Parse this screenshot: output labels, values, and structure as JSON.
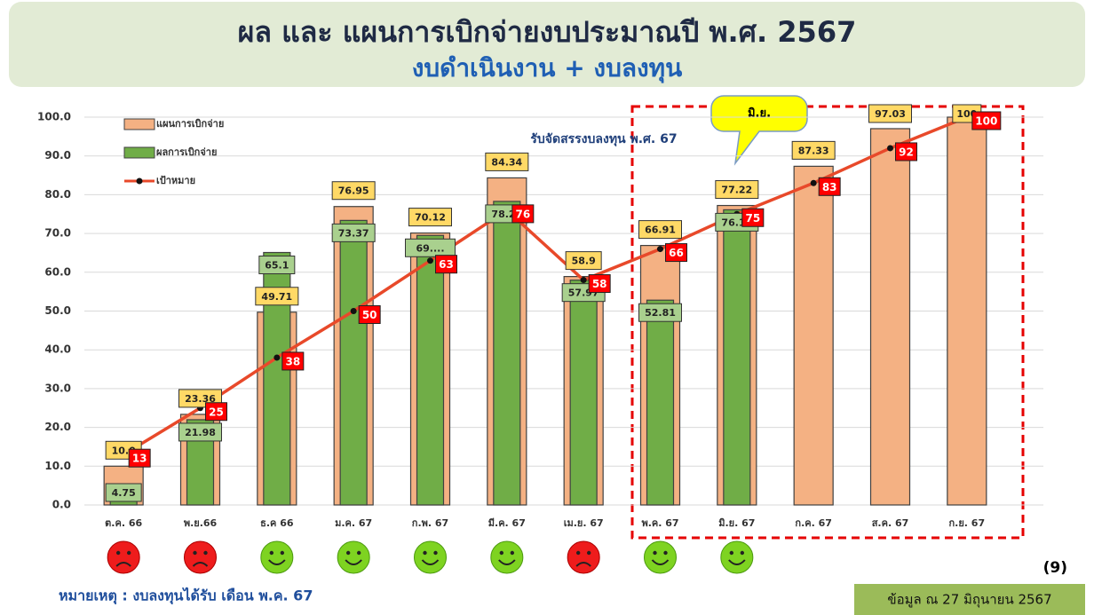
{
  "chart_data": {
    "type": "bar",
    "title": "ผล และ แผนการเบิกจ่ายงบประมาณปี พ.ศ. 2567",
    "subtitle": "งบดำเนินงาน + งบลงทุน",
    "annotation": "รับจัดสรรงบลงทุน  พ.ศ. 67",
    "callout": "มิ.ย.",
    "note": "หมายเหตุ : งบลงทุนได้รับ เดือน พ.ค. 67",
    "page_number": "(9)",
    "data_date": "ข้อมูล ณ  27  มิถุนายน 2567",
    "categories": [
      "ต.ค. 66",
      "พ.ย.66",
      "ธ.ค 66",
      "ม.ค. 67",
      "ก.พ. 67",
      "มี.ค. 67",
      "เม.ย. 67",
      "พ.ค. 67",
      "มิ.ย. 67",
      "ก.ค. 67",
      "ส.ค. 67",
      "ก.ย. 67"
    ],
    "series": [
      {
        "name": "แผนการเบิกจ่าย",
        "type": "bar",
        "color": "#f4b183",
        "values": [
          10.0,
          23.36,
          49.71,
          76.95,
          70.12,
          84.34,
          58.9,
          66.91,
          77.22,
          87.33,
          97.03,
          100
        ],
        "value_labels": [
          "10.0",
          "23.36",
          "49.71",
          "76.95",
          "70.12",
          "84.34",
          "58.9",
          "66.91",
          "77.22",
          "87.33",
          "97.03",
          "100"
        ]
      },
      {
        "name": "ผลการเบิกจ่าย",
        "type": "bar",
        "color": "#70ad47",
        "values": [
          4.75,
          21.98,
          65.1,
          73.37,
          69.5,
          78.28,
          57.97,
          52.81,
          76.11,
          null,
          null,
          null
        ],
        "value_labels": [
          "4.75",
          "21.98",
          "65.1",
          "73.37",
          "69....",
          "78.28",
          "57.97",
          "52.81",
          "76.11",
          null,
          null,
          null
        ]
      },
      {
        "name": "เป้าหมาย",
        "type": "line",
        "color": "#e8492a",
        "values": [
          13,
          25,
          38,
          50,
          63,
          76,
          58,
          66,
          75,
          83,
          92,
          100
        ]
      }
    ],
    "ylim": [
      0,
      100
    ],
    "yticks": [
      {
        "value": 0,
        "label": "0.0"
      },
      {
        "value": 10,
        "label": "10.0"
      },
      {
        "value": 20,
        "label": "20.0"
      },
      {
        "value": 30,
        "label": "30.0"
      },
      {
        "value": 40,
        "label": "40.0"
      },
      {
        "value": 50,
        "label": "50.0"
      },
      {
        "value": 60,
        "label": "60.0"
      },
      {
        "value": 70,
        "label": "70.0"
      },
      {
        "value": 80,
        "label": "80.0"
      },
      {
        "value": 90,
        "label": "90.0"
      },
      {
        "value": 100,
        "label": "100.0"
      }
    ],
    "grid": true,
    "legend": "upper left"
  }
}
